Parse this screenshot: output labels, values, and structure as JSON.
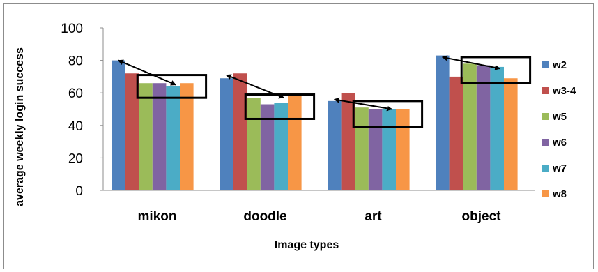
{
  "chart_data": {
    "type": "bar",
    "title": "",
    "xlabel": "Image types",
    "ylabel": "average weekly login success",
    "ylim": [
      0,
      100
    ],
    "yticks": [
      0,
      20,
      40,
      60,
      80,
      100
    ],
    "grid": false,
    "legend_position": "right",
    "categories": [
      "mikon",
      "doodle",
      "art",
      "object"
    ],
    "series": [
      {
        "name": "w2",
        "color": "#4F81BD",
        "values": [
          80,
          69,
          55,
          83
        ]
      },
      {
        "name": "w3-4",
        "color": "#C0504D",
        "values": [
          72,
          72,
          60,
          70
        ]
      },
      {
        "name": "w5",
        "color": "#9BBB59",
        "values": [
          66,
          57,
          51,
          78
        ]
      },
      {
        "name": "w6",
        "color": "#8064A2",
        "values": [
          66,
          53,
          50,
          77
        ]
      },
      {
        "name": "w7",
        "color": "#4BACC6",
        "values": [
          64,
          54,
          50,
          76
        ]
      },
      {
        "name": "w8",
        "color": "#F79646",
        "values": [
          66,
          58,
          50,
          69
        ]
      }
    ],
    "annotations": [
      {
        "category": "mikon",
        "arrow_from_value": 80,
        "arrow_to_value": 65,
        "highlight_range": [
          57,
          71
        ]
      },
      {
        "category": "doodle",
        "arrow_from_value": 71,
        "arrow_to_value": 57,
        "highlight_range": [
          44,
          59
        ]
      },
      {
        "category": "art",
        "arrow_from_value": 56,
        "arrow_to_value": 50,
        "highlight_range": [
          39,
          55
        ]
      },
      {
        "category": "object",
        "arrow_from_value": 82,
        "arrow_to_value": 75,
        "highlight_range": [
          66,
          82
        ]
      }
    ]
  }
}
